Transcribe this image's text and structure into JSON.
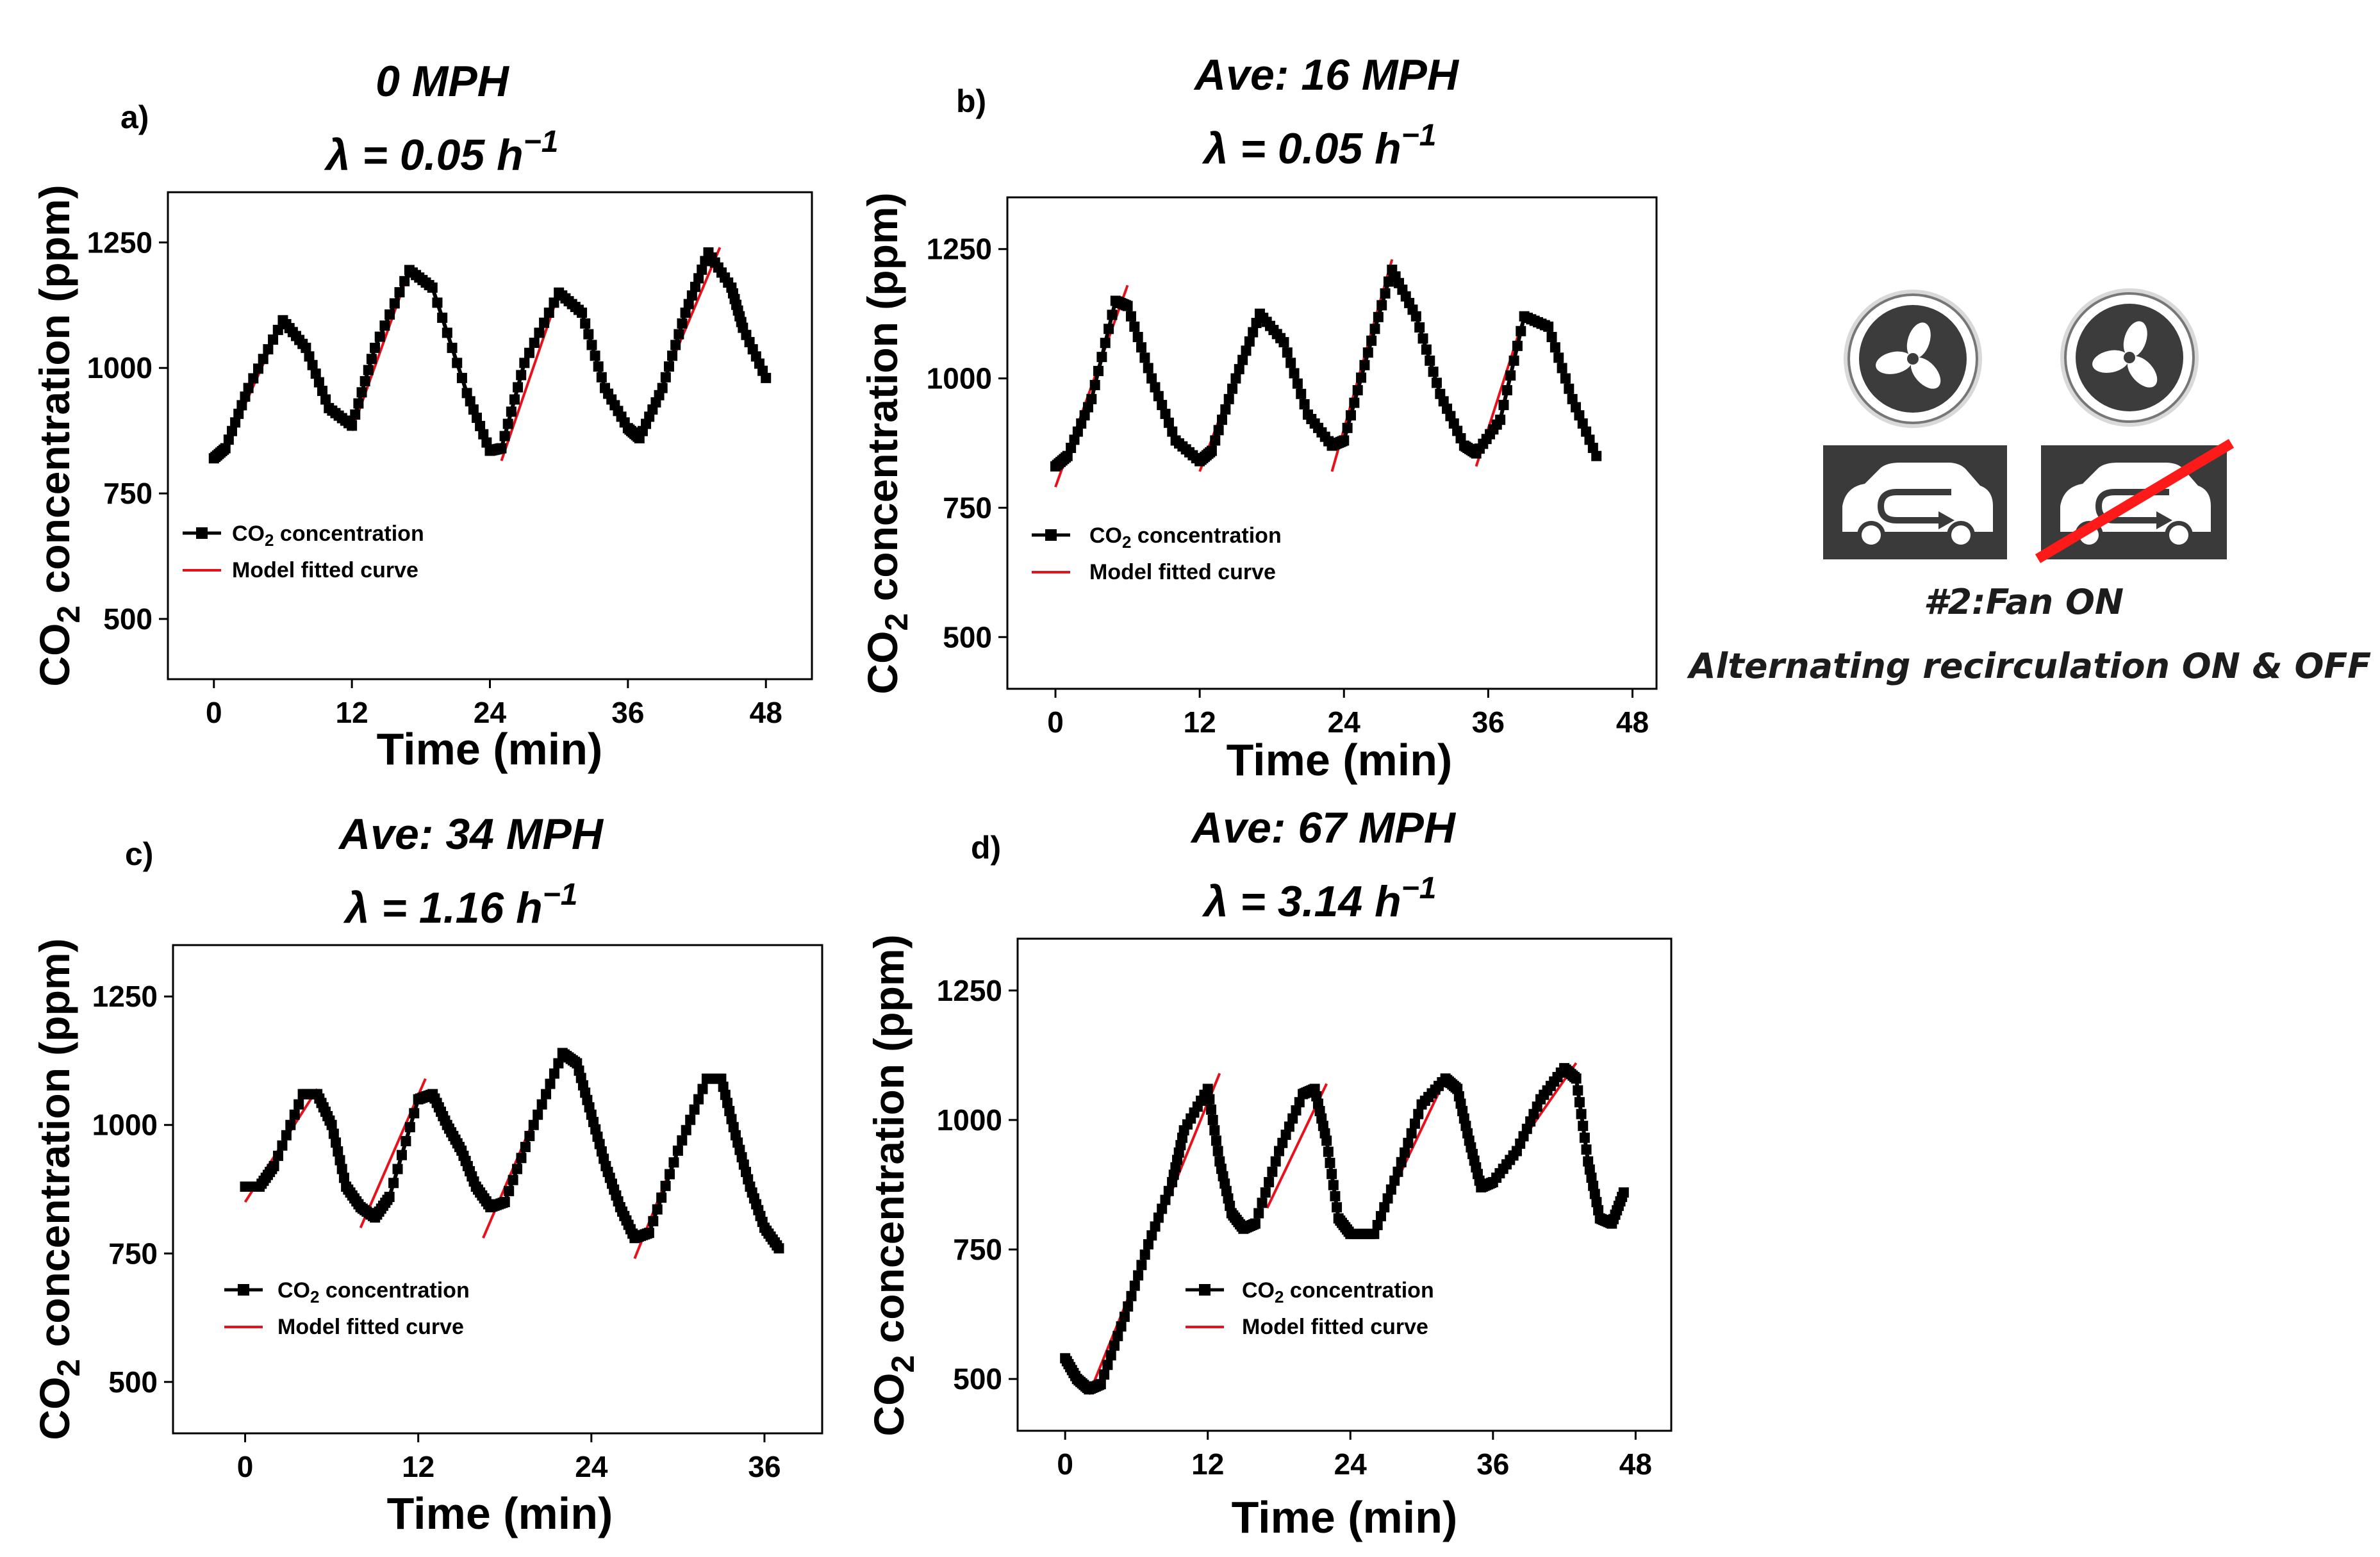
{
  "chart_data": [
    {
      "type": "line",
      "panel_label": "a)",
      "title": "0 MPH",
      "lambda_prefix": "λ = ",
      "lambda_value": "0.05",
      "lambda_unit": " h",
      "lambda_exp": "−1",
      "xlabel": "Time (min)",
      "ylabel_pre": "CO",
      "ylabel_sub": "2",
      "ylabel_post": " concentration (ppm)",
      "xlim": [
        -4,
        52
      ],
      "ylim": [
        380,
        1350
      ],
      "xticks": [
        0,
        12,
        24,
        36,
        48
      ],
      "yticks": [
        500,
        750,
        1000,
        1250
      ],
      "legend": {
        "co2_pre": "CO",
        "co2_sub": "2",
        "co2_post": " concentration",
        "model": "Model fitted curve"
      },
      "series": [
        {
          "name": "CO2 concentration",
          "x": [
            0,
            1,
            3,
            6,
            8,
            10,
            12,
            14,
            17,
            19,
            22,
            24,
            25,
            27,
            30,
            32,
            34,
            36,
            37,
            39,
            41,
            43,
            45,
            46,
            48
          ],
          "y": [
            820,
            840,
            960,
            1095,
            1040,
            920,
            885,
            1040,
            1195,
            1160,
            950,
            835,
            840,
            1010,
            1150,
            1110,
            960,
            880,
            860,
            960,
            1110,
            1230,
            1160,
            1080,
            980
          ]
        },
        {
          "name": "Model fitted curve",
          "segments": [
            {
              "x": [
                1,
                6
              ],
              "y": [
                840,
                1095
              ]
            },
            {
              "x": [
                12,
                17
              ],
              "y": [
                875,
                1195
              ]
            },
            {
              "x": [
                25,
                30
              ],
              "y": [
                815,
                1150
              ]
            },
            {
              "x": [
                37,
                44
              ],
              "y": [
                860,
                1240
              ]
            }
          ]
        }
      ]
    },
    {
      "type": "line",
      "panel_label": "b)",
      "title": "Ave: 16 MPH",
      "lambda_prefix": "λ = ",
      "lambda_value": "0.05",
      "lambda_unit": " h",
      "lambda_exp": "−1",
      "xlabel": "Time (min)",
      "ylabel_pre": "CO",
      "ylabel_sub": "2",
      "ylabel_post": " concentration (ppm)",
      "xlim": [
        -4,
        50
      ],
      "ylim": [
        400,
        1350
      ],
      "xticks": [
        0,
        12,
        24,
        36,
        48
      ],
      "yticks": [
        500,
        750,
        1000,
        1250
      ],
      "legend": {
        "co2_pre": "CO",
        "co2_sub": "2",
        "co2_post": " concentration",
        "model": "Model fitted curve"
      },
      "series": [
        {
          "name": "CO2 concentration",
          "x": [
            0,
            1,
            3,
            5,
            6,
            8,
            10,
            12,
            13,
            15,
            17,
            19,
            21,
            23,
            24,
            26,
            28,
            30,
            32,
            34,
            35,
            37,
            39,
            41,
            43,
            45
          ],
          "y": [
            830,
            850,
            960,
            1150,
            1140,
            1000,
            880,
            840,
            860,
            1000,
            1125,
            1070,
            930,
            870,
            880,
            1050,
            1210,
            1120,
            970,
            870,
            855,
            920,
            1120,
            1100,
            960,
            850
          ]
        },
        {
          "name": "Model fitted curve",
          "segments": [
            {
              "x": [
                0,
                6
              ],
              "y": [
                790,
                1180
              ]
            },
            {
              "x": [
                12,
                17
              ],
              "y": [
                820,
                1130
              ]
            },
            {
              "x": [
                23,
                28
              ],
              "y": [
                820,
                1230
              ]
            },
            {
              "x": [
                35,
                39
              ],
              "y": [
                830,
                1120
              ]
            }
          ]
        }
      ]
    },
    {
      "type": "line",
      "panel_label": "c)",
      "title": "Ave: 34 MPH",
      "lambda_prefix": "λ = ",
      "lambda_value": "1.16",
      "lambda_unit": " h",
      "lambda_exp": "−1",
      "xlabel": "Time (min)",
      "ylabel_pre": "CO",
      "ylabel_sub": "2",
      "ylabel_post": " concentration (ppm)",
      "xlim": [
        -5,
        40
      ],
      "ylim": [
        400,
        1350
      ],
      "xticks": [
        0,
        12,
        24,
        36
      ],
      "yticks": [
        500,
        750,
        1000,
        1250
      ],
      "legend": {
        "co2_pre": "CO",
        "co2_sub": "2",
        "co2_post": " concentration",
        "model": "Model fitted curve"
      },
      "series": [
        {
          "name": "CO2 concentration",
          "x": [
            0,
            1,
            2,
            4,
            5,
            6,
            7,
            8,
            9,
            10,
            12,
            13,
            14,
            15,
            16,
            17,
            18,
            20,
            22,
            23,
            24,
            25,
            26,
            27,
            28,
            30,
            32,
            33,
            34,
            35,
            36,
            37
          ],
          "y": [
            880,
            880,
            920,
            1060,
            1060,
            1000,
            880,
            840,
            820,
            860,
            1050,
            1060,
            1000,
            950,
            880,
            840,
            850,
            1000,
            1140,
            1120,
            1020,
            920,
            840,
            780,
            790,
            950,
            1090,
            1090,
            980,
            880,
            800,
            760
          ]
        },
        {
          "name": "Model fitted curve",
          "segments": [
            {
              "x": [
                0,
                5
              ],
              "y": [
                850,
                1070
              ]
            },
            {
              "x": [
                8,
                12.5
              ],
              "y": [
                800,
                1090
              ]
            },
            {
              "x": [
                16.5,
                22
              ],
              "y": [
                780,
                1140
              ]
            },
            {
              "x": [
                27,
                32
              ],
              "y": [
                740,
                1090
              ]
            }
          ]
        }
      ]
    },
    {
      "type": "line",
      "panel_label": "d)",
      "title": "Ave: 67 MPH",
      "lambda_prefix": "λ = ",
      "lambda_value": "3.14",
      "lambda_unit": " h",
      "lambda_exp": "−1",
      "xlabel": "Time (min)",
      "ylabel_pre": "CO",
      "ylabel_sub": "2",
      "ylabel_post": " concentration (ppm)",
      "xlim": [
        -4,
        51
      ],
      "ylim": [
        400,
        1350
      ],
      "xticks": [
        0,
        12,
        24,
        36,
        48
      ],
      "yticks": [
        500,
        750,
        1000,
        1250
      ],
      "legend": {
        "co2_pre": "CO",
        "co2_sub": "2",
        "co2_post": " concentration",
        "model": "Model fitted curve"
      },
      "series": [
        {
          "name": "CO2 concentration",
          "x": [
            0,
            1,
            2,
            3,
            5,
            7,
            9,
            10,
            12,
            13,
            14,
            15,
            16,
            18,
            20,
            21,
            22,
            23,
            24,
            26,
            28,
            30,
            32,
            33,
            34,
            35,
            36,
            38,
            40,
            42,
            43,
            44,
            45,
            46,
            47
          ],
          "y": [
            540,
            500,
            480,
            490,
            620,
            760,
            880,
            980,
            1060,
            920,
            820,
            790,
            800,
            940,
            1050,
            1060,
            960,
            810,
            780,
            780,
            900,
            1030,
            1080,
            1060,
            960,
            870,
            880,
            940,
            1040,
            1100,
            1080,
            920,
            810,
            800,
            860
          ]
        },
        {
          "name": "Model fitted curve",
          "segments": [
            {
              "x": [
                2,
                13
              ],
              "y": [
                470,
                1090
              ]
            },
            {
              "x": [
                17,
                22
              ],
              "y": [
                830,
                1070
              ]
            },
            {
              "x": [
                26,
                32
              ],
              "y": [
                790,
                1080
              ]
            },
            {
              "x": [
                36,
                43
              ],
              "y": [
                880,
                1110
              ]
            }
          ]
        }
      ]
    }
  ],
  "illustration": {
    "caption_line1": "#2:Fan ON",
    "caption_line2": "Alternating recirculation ON & OFF",
    "icons": [
      "fan-icon",
      "recirculation-on-icon",
      "recirculation-off-icon"
    ]
  },
  "colors": {
    "data": "#000000",
    "model": "#e8101a",
    "text": "#000000"
  }
}
